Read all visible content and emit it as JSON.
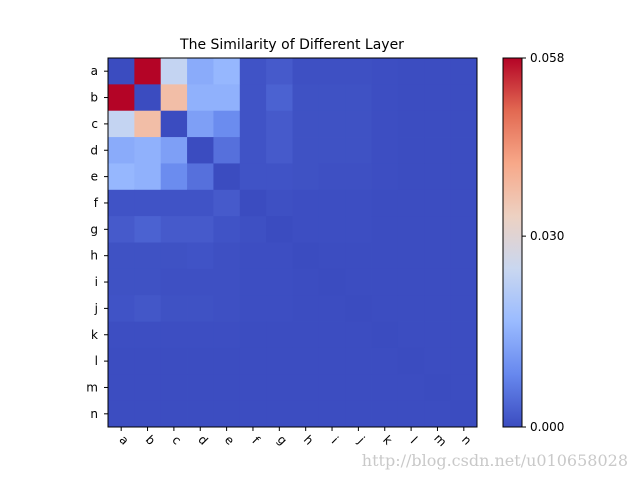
{
  "chart_data": {
    "type": "heatmap",
    "title": "The Similarity of Different Layer",
    "x_labels": [
      "a",
      "b",
      "c",
      "d",
      "e",
      "f",
      "g",
      "h",
      "i",
      "j",
      "k",
      "l",
      "m",
      "n"
    ],
    "y_labels": [
      "a",
      "b",
      "c",
      "d",
      "e",
      "f",
      "g",
      "h",
      "i",
      "j",
      "k",
      "l",
      "m",
      "n"
    ],
    "colormap": "coolwarm",
    "vmin": 0.0,
    "vmax": 0.058,
    "colorbar_ticks": [
      "0.058",
      "0.030",
      "0.000"
    ],
    "colorbar_tick_values": [
      0.058,
      0.03,
      0.0
    ],
    "values": [
      [
        0.0,
        0.058,
        0.024,
        0.014,
        0.016,
        0.001,
        0.002,
        0.0005,
        0.0005,
        0.0005,
        0.0003,
        0.0002,
        0.0002,
        0.0002
      ],
      [
        0.058,
        0.0,
        0.037,
        0.015,
        0.015,
        0.001,
        0.003,
        0.0008,
        0.0008,
        0.0008,
        0.0003,
        0.0002,
        0.0002,
        0.0002
      ],
      [
        0.024,
        0.037,
        0.0,
        0.012,
        0.009,
        0.001,
        0.002,
        0.0008,
        0.0008,
        0.0008,
        0.0003,
        0.0002,
        0.0002,
        0.0002
      ],
      [
        0.014,
        0.015,
        0.012,
        0.0,
        0.005,
        0.001,
        0.002,
        0.0008,
        0.0008,
        0.0008,
        0.0003,
        0.0002,
        0.0002,
        0.0002
      ],
      [
        0.016,
        0.015,
        0.009,
        0.005,
        0.0,
        0.001,
        0.001,
        0.0008,
        0.0005,
        0.0005,
        0.0003,
        0.0002,
        0.0002,
        0.0002
      ],
      [
        0.001,
        0.001,
        0.001,
        0.001,
        0.002,
        0.0,
        0.0005,
        0.0003,
        0.0003,
        0.0003,
        0.0002,
        0.0002,
        0.0002,
        0.0002
      ],
      [
        0.002,
        0.003,
        0.002,
        0.002,
        0.001,
        0.0005,
        0.0,
        0.0003,
        0.0003,
        0.0003,
        0.0002,
        0.0002,
        0.0002,
        0.0002
      ],
      [
        0.0008,
        0.0008,
        0.0008,
        0.001,
        0.0005,
        0.0003,
        0.0003,
        0.0,
        0.0002,
        0.0002,
        0.0002,
        0.0002,
        0.0002,
        0.0002
      ],
      [
        0.0008,
        0.0008,
        0.0005,
        0.0005,
        0.0005,
        0.0003,
        0.0003,
        0.0002,
        0.0,
        0.0002,
        0.0002,
        0.0002,
        0.0002,
        0.0002
      ],
      [
        0.001,
        0.0015,
        0.0008,
        0.0008,
        0.0005,
        0.0003,
        0.0003,
        0.0002,
        0.0002,
        0.0,
        0.0002,
        0.0002,
        0.0002,
        0.0002
      ],
      [
        0.0003,
        0.0003,
        0.0003,
        0.0003,
        0.0003,
        0.0002,
        0.0002,
        0.0002,
        0.0002,
        0.0002,
        0.0,
        0.0002,
        0.0002,
        0.0002
      ],
      [
        0.0002,
        0.0002,
        0.0002,
        0.0002,
        0.0002,
        0.0002,
        0.0002,
        0.0002,
        0.0002,
        0.0002,
        0.0002,
        0.0,
        0.0002,
        0.0002
      ],
      [
        0.0002,
        0.0002,
        0.0002,
        0.0002,
        0.0002,
        0.0002,
        0.0002,
        0.0002,
        0.0002,
        0.0002,
        0.0002,
        0.0002,
        0.0,
        0.0002
      ],
      [
        0.0002,
        0.0002,
        0.0002,
        0.0002,
        0.0002,
        0.0002,
        0.0002,
        0.0002,
        0.0002,
        0.0002,
        0.0002,
        0.0002,
        0.0002,
        0.0
      ]
    ],
    "colormap_stops": [
      "#3b4cc0",
      "#6788ee",
      "#9abbff",
      "#c9d7f0",
      "#edd1c2",
      "#f7a889",
      "#e26952",
      "#b40426"
    ]
  },
  "watermark": "http://blog.csdn.net/u010658028"
}
